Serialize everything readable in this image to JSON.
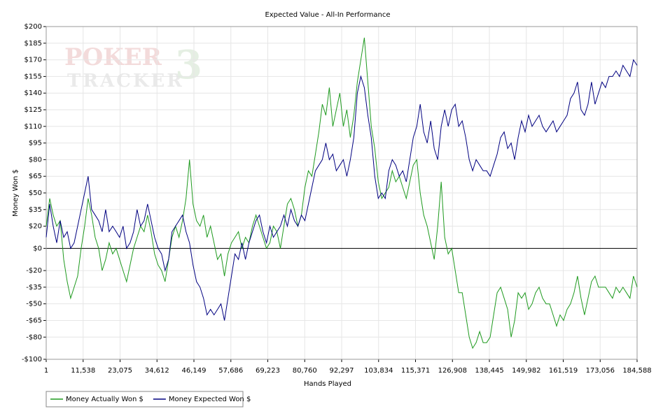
{
  "chart_data": {
    "type": "line",
    "title": "Expected Value - All-In Performance",
    "xlabel": "Hands Played",
    "ylabel": "Money Won $",
    "watermark": {
      "line1": "POKER",
      "line2": "TRACKER",
      "mark": "3"
    },
    "xlim": [
      1,
      184588
    ],
    "ylim": [
      -100,
      200
    ],
    "grid": true,
    "legend": "bottom-left",
    "xticks": [
      1,
      {
        "value": 11538,
        "label": "11,538"
      },
      {
        "value": 23075,
        "label": "23,075"
      },
      {
        "value": 34612,
        "label": "34,612"
      },
      {
        "value": 46149,
        "label": "46,149"
      },
      {
        "value": 57686,
        "label": "57,686"
      },
      {
        "value": 69223,
        "label": "69,223"
      },
      {
        "value": 80760,
        "label": "80,760"
      },
      {
        "value": 92297,
        "label": "92,297"
      },
      {
        "value": 103834,
        "label": "103,834"
      },
      {
        "value": 115371,
        "label": "115,371"
      },
      {
        "value": 126908,
        "label": "126,908"
      },
      {
        "value": 138445,
        "label": "138,445"
      },
      {
        "value": 149982,
        "label": "149,982"
      },
      {
        "value": 161519,
        "label": "161,519"
      },
      {
        "value": 173056,
        "label": "173,056"
      },
      {
        "value": 184588,
        "label": "184,588"
      }
    ],
    "yticks": [
      {
        "value": 200,
        "label": "$200"
      },
      {
        "value": 185,
        "label": "$185"
      },
      {
        "value": 170,
        "label": "$170"
      },
      {
        "value": 155,
        "label": "$155"
      },
      {
        "value": 140,
        "label": "$140"
      },
      {
        "value": 125,
        "label": "$125"
      },
      {
        "value": 110,
        "label": "$110"
      },
      {
        "value": 95,
        "label": "$95"
      },
      {
        "value": 80,
        "label": "$80"
      },
      {
        "value": 65,
        "label": "$65"
      },
      {
        "value": 50,
        "label": "$50"
      },
      {
        "value": 35,
        "label": "$35"
      },
      {
        "value": 20,
        "label": "$20"
      },
      {
        "value": 0,
        "label": "$0"
      },
      {
        "value": -20,
        "label": "-$20"
      },
      {
        "value": -35,
        "label": "-$35"
      },
      {
        "value": -50,
        "label": "-$50"
      },
      {
        "value": -65,
        "label": "-$65"
      },
      {
        "value": -80,
        "label": "-$80"
      },
      {
        "value": -100,
        "label": "-$100"
      }
    ],
    "x": [
      1,
      1092,
      2184,
      3276,
      4368,
      5460,
      6552,
      7644,
      8736,
      9828,
      10920,
      12012,
      13104,
      14196,
      15288,
      16380,
      17472,
      18564,
      19656,
      20748,
      21840,
      22932,
      24024,
      25116,
      26208,
      27300,
      28392,
      29484,
      30576,
      31668,
      32760,
      33852,
      34944,
      36036,
      37128,
      38220,
      39312,
      40404,
      41496,
      42588,
      43680,
      44772,
      45864,
      46956,
      48048,
      49140,
      50232,
      51324,
      52416,
      53508,
      54600,
      55692,
      56784,
      57876,
      58968,
      60060,
      61152,
      62244,
      63336,
      64428,
      65520,
      66612,
      67704,
      68796,
      69888,
      70980,
      72072,
      73164,
      74256,
      75348,
      76440,
      77532,
      78624,
      79716,
      80808,
      81900,
      82992,
      84084,
      85176,
      86268,
      87360,
      88452,
      89544,
      90636,
      91728,
      92820,
      93912,
      95004,
      96096,
      97188,
      98280,
      99372,
      100464,
      101556,
      102648,
      103740,
      104832,
      105924,
      107016,
      108108,
      109200,
      110292,
      111384,
      112476,
      113568,
      114660,
      115752,
      116844,
      117936,
      119028,
      120120,
      121212,
      122304,
      123396,
      124488,
      125580,
      126672,
      127764,
      128856,
      129948,
      131040,
      132132,
      133224,
      134316,
      135408,
      136500,
      137592,
      138684,
      139776,
      140868,
      141960,
      143052,
      144144,
      145236,
      146328,
      147420,
      148512,
      149604,
      150696,
      151788,
      152880,
      153972,
      155064,
      156156,
      157248,
      158340,
      159432,
      160524,
      161616,
      162708,
      163800,
      164892,
      165984,
      167076,
      168168,
      169260,
      170352,
      171444,
      172536,
      173628,
      174720,
      175812,
      176904,
      177996,
      179088,
      180180,
      181272,
      182364,
      183456,
      184588
    ],
    "series": [
      {
        "name": "Money Actually Won $",
        "color": "#1f9a1f",
        "values": [
          20,
          45,
          30,
          20,
          25,
          -10,
          -30,
          -45,
          -35,
          -25,
          0,
          20,
          45,
          30,
          10,
          0,
          -20,
          -10,
          5,
          -5,
          0,
          -10,
          -20,
          -30,
          -15,
          0,
          10,
          20,
          15,
          30,
          15,
          -5,
          -15,
          -20,
          -30,
          -10,
          10,
          20,
          10,
          25,
          45,
          80,
          40,
          25,
          20,
          30,
          10,
          20,
          5,
          -10,
          -5,
          -25,
          -5,
          5,
          10,
          15,
          0,
          10,
          5,
          20,
          30,
          20,
          10,
          0,
          5,
          20,
          15,
          0,
          20,
          40,
          45,
          35,
          20,
          30,
          55,
          70,
          65,
          85,
          105,
          130,
          120,
          145,
          110,
          125,
          140,
          110,
          125,
          100,
          120,
          150,
          170,
          190,
          150,
          110,
          90,
          60,
          45,
          50,
          55,
          70,
          60,
          65,
          55,
          45,
          60,
          75,
          80,
          50,
          30,
          20,
          5,
          -10,
          20,
          60,
          10,
          -5,
          0,
          -20,
          -40,
          -40,
          -60,
          -80,
          -90,
          -85,
          -75,
          -85,
          -85,
          -80,
          -60,
          -40,
          -35,
          -45,
          -55,
          -80,
          -65,
          -40,
          -45,
          -40,
          -55,
          -50,
          -40,
          -35,
          -45,
          -50,
          -50,
          -60,
          -70,
          -60,
          -65,
          -55,
          -50,
          -40,
          -25,
          -45,
          -60,
          -45,
          -30,
          -25,
          -35,
          -35,
          -35,
          -40,
          -45,
          -35,
          -40,
          -35,
          -40,
          -45,
          -25,
          -35
        ]
      },
      {
        "name": "Money Expected Won $",
        "color": "#000080",
        "values": [
          10,
          40,
          20,
          5,
          25,
          10,
          15,
          0,
          5,
          20,
          35,
          50,
          65,
          35,
          30,
          25,
          15,
          35,
          15,
          20,
          15,
          10,
          20,
          0,
          5,
          15,
          35,
          20,
          25,
          40,
          25,
          10,
          0,
          -5,
          -20,
          -10,
          15,
          20,
          25,
          30,
          15,
          5,
          -15,
          -30,
          -35,
          -45,
          -60,
          -55,
          -60,
          -55,
          -50,
          -65,
          -45,
          -25,
          -5,
          -10,
          5,
          -10,
          5,
          15,
          25,
          30,
          15,
          5,
          20,
          10,
          15,
          20,
          30,
          20,
          35,
          25,
          20,
          30,
          25,
          40,
          55,
          70,
          75,
          80,
          95,
          80,
          85,
          70,
          75,
          80,
          65,
          80,
          100,
          140,
          155,
          145,
          120,
          100,
          65,
          45,
          50,
          45,
          70,
          80,
          75,
          65,
          70,
          60,
          80,
          100,
          110,
          130,
          105,
          95,
          115,
          90,
          80,
          110,
          125,
          110,
          125,
          130,
          110,
          115,
          100,
          80,
          70,
          80,
          75,
          70,
          70,
          65,
          75,
          85,
          100,
          105,
          90,
          95,
          80,
          100,
          115,
          105,
          120,
          110,
          115,
          120,
          110,
          105,
          110,
          115,
          105,
          110,
          115,
          120,
          135,
          140,
          150,
          125,
          120,
          130,
          150,
          130,
          140,
          150,
          145,
          155,
          155,
          160,
          155,
          165,
          160,
          155,
          170,
          165
        ]
      }
    ]
  }
}
